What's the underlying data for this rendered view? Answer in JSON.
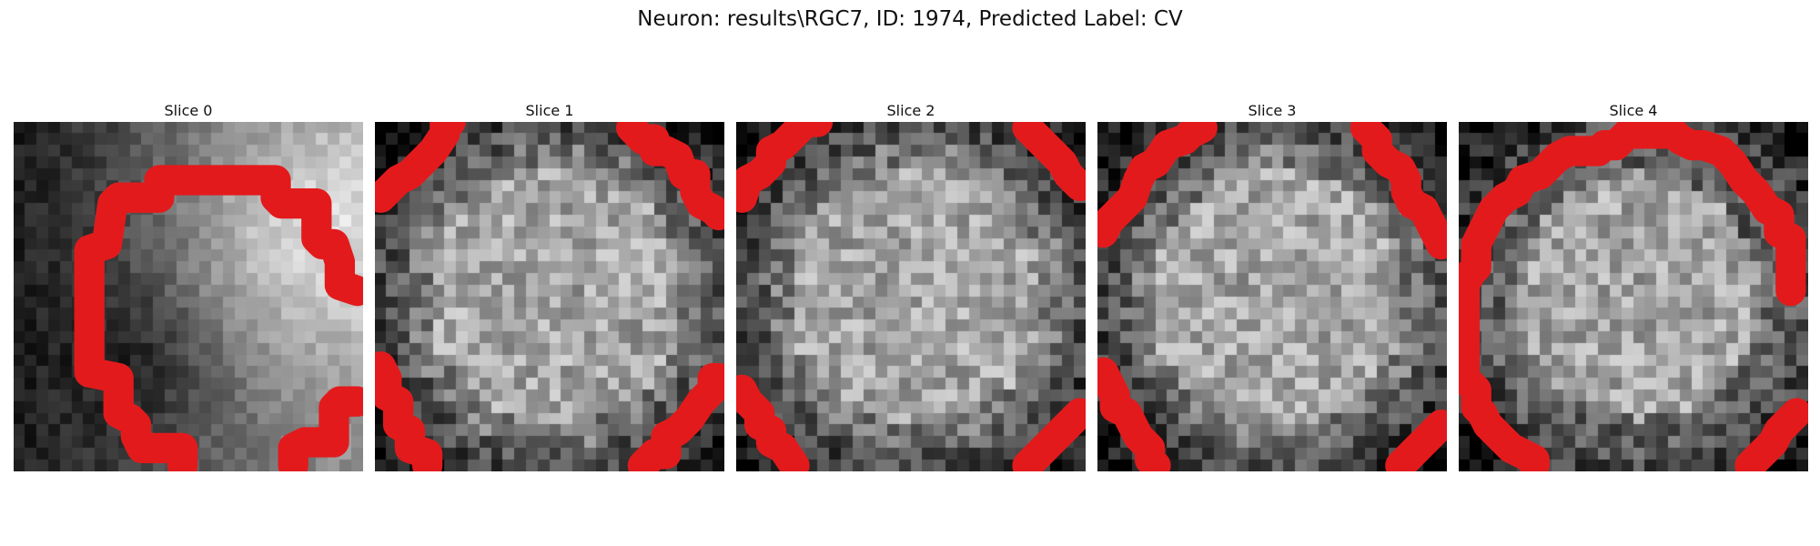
{
  "figure": {
    "title": "Neuron: results\\RGC7, ID: 1974, Predicted Label: CV",
    "outline_color": "#e31a1c"
  },
  "slices": [
    {
      "label": "Slice 0"
    },
    {
      "label": "Slice 1"
    },
    {
      "label": "Slice 2"
    },
    {
      "label": "Slice 3"
    },
    {
      "label": "Slice 4"
    }
  ]
}
